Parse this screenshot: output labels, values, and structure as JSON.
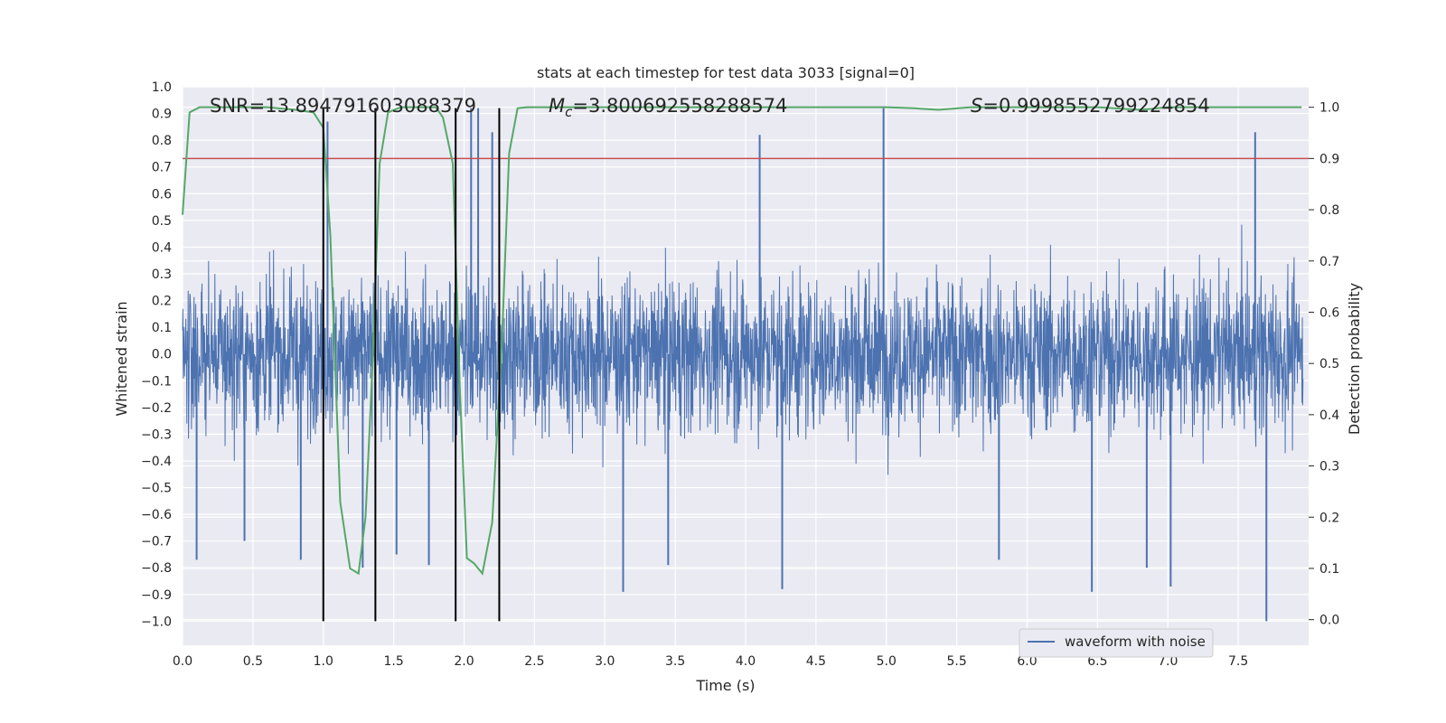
{
  "chart_data": {
    "type": "line",
    "title": "stats at each timestep for test data 3033 [signal=0]",
    "xlabel": "Time (s)",
    "ylabel": "Whitened strain",
    "y2label": "Detection probability",
    "xlim": [
      0.0,
      8.0
    ],
    "ylim": [
      -1.09,
      1.0
    ],
    "y2lim": [
      -0.05,
      1.04
    ],
    "xticks": [
      "0.0",
      "0.5",
      "1.0",
      "1.5",
      "2.0",
      "2.5",
      "3.0",
      "3.5",
      "4.0",
      "4.5",
      "5.0",
      "5.5",
      "6.0",
      "6.5",
      "7.0",
      "7.5"
    ],
    "yticks": [
      "1.0",
      "0.9",
      "0.8",
      "0.7",
      "0.6",
      "0.5",
      "0.4",
      "0.3",
      "0.2",
      "0.1",
      "0.0",
      "−0.1",
      "−0.2",
      "−0.3",
      "−0.4",
      "−0.5",
      "−0.6",
      "−0.7",
      "−0.8",
      "−0.9",
      "−1.0"
    ],
    "y2ticks": [
      "1.0",
      "0.9",
      "0.8",
      "0.7",
      "0.6",
      "0.5",
      "0.4",
      "0.3",
      "0.2",
      "0.1",
      "0.0"
    ],
    "grid": true,
    "legend_position": "bottom-right",
    "annotations": {
      "snr": "SNR=13.894791603088379",
      "mc_prefix": "M",
      "mc_sub": "c",
      "mc_value": "=3.800692558288574",
      "s_prefix": "S",
      "s_value": "=0.9998552799224854"
    },
    "series": [
      {
        "name": "waveform with noise",
        "color": "#4c72b0",
        "kind": "noise",
        "spikes": [
          {
            "x": 0.1,
            "y": -0.77
          },
          {
            "x": 0.44,
            "y": -0.7
          },
          {
            "x": 0.84,
            "y": -0.77
          },
          {
            "x": 1.03,
            "y": 0.87
          },
          {
            "x": 1.28,
            "y": -0.8
          },
          {
            "x": 1.52,
            "y": -0.75
          },
          {
            "x": 1.75,
            "y": -0.79
          },
          {
            "x": 2.05,
            "y": 0.92
          },
          {
            "x": 2.1,
            "y": 0.92
          },
          {
            "x": 2.2,
            "y": 0.83
          },
          {
            "x": 3.13,
            "y": -0.89
          },
          {
            "x": 3.45,
            "y": -0.79
          },
          {
            "x": 4.1,
            "y": 0.82
          },
          {
            "x": 4.26,
            "y": -0.88
          },
          {
            "x": 4.98,
            "y": 0.92
          },
          {
            "x": 5.8,
            "y": -0.77
          },
          {
            "x": 6.46,
            "y": -0.89
          },
          {
            "x": 6.85,
            "y": -0.8
          },
          {
            "x": 7.02,
            "y": -0.87
          },
          {
            "x": 7.62,
            "y": 0.83
          },
          {
            "x": 7.7,
            "y": -1.0
          }
        ]
      },
      {
        "name": "",
        "color": "#55a868",
        "kind": "probability",
        "x": [
          0.0,
          0.05,
          0.12,
          0.3,
          0.6,
          0.8,
          0.93,
          1.0,
          1.05,
          1.12,
          1.19,
          1.25,
          1.3,
          1.35,
          1.4,
          1.46,
          1.55,
          1.7,
          1.8,
          1.85,
          1.92,
          1.97,
          2.02,
          2.07,
          2.13,
          2.2,
          2.27,
          2.32,
          2.38,
          2.45,
          2.6,
          3.0,
          3.5,
          4.0,
          4.5,
          5.0,
          5.2,
          5.37,
          5.6,
          6.0,
          6.5,
          6.8,
          7.0,
          7.5,
          7.95
        ],
        "y": [
          0.79,
          0.99,
          1.0,
          1.0,
          1.0,
          0.995,
          0.99,
          0.96,
          0.75,
          0.23,
          0.1,
          0.09,
          0.2,
          0.5,
          0.89,
          0.99,
          1.0,
          1.0,
          1.0,
          0.98,
          0.89,
          0.45,
          0.12,
          0.11,
          0.09,
          0.19,
          0.55,
          0.91,
          0.998,
          1.0,
          1.0,
          1.0,
          1.0,
          1.0,
          1.0,
          1.0,
          0.998,
          0.995,
          1.0,
          1.0,
          1.0,
          0.995,
          1.0,
          1.0,
          1.0
        ]
      },
      {
        "name": "",
        "color": "#c44e52",
        "kind": "threshold",
        "y2": 0.9
      }
    ],
    "vlines": [
      {
        "x": 1.0,
        "ymin": -1.0,
        "ymax": 0.92
      },
      {
        "x": 1.37,
        "ymin": -1.0,
        "ymax": 0.92
      },
      {
        "x": 1.94,
        "ymin": -1.0,
        "ymax": 0.92
      },
      {
        "x": 2.25,
        "ymin": -1.0,
        "ymax": 0.92
      }
    ]
  },
  "colors": {
    "plot_background": "#eaeaf2",
    "grid": "#ffffff",
    "vline": "#000000"
  }
}
